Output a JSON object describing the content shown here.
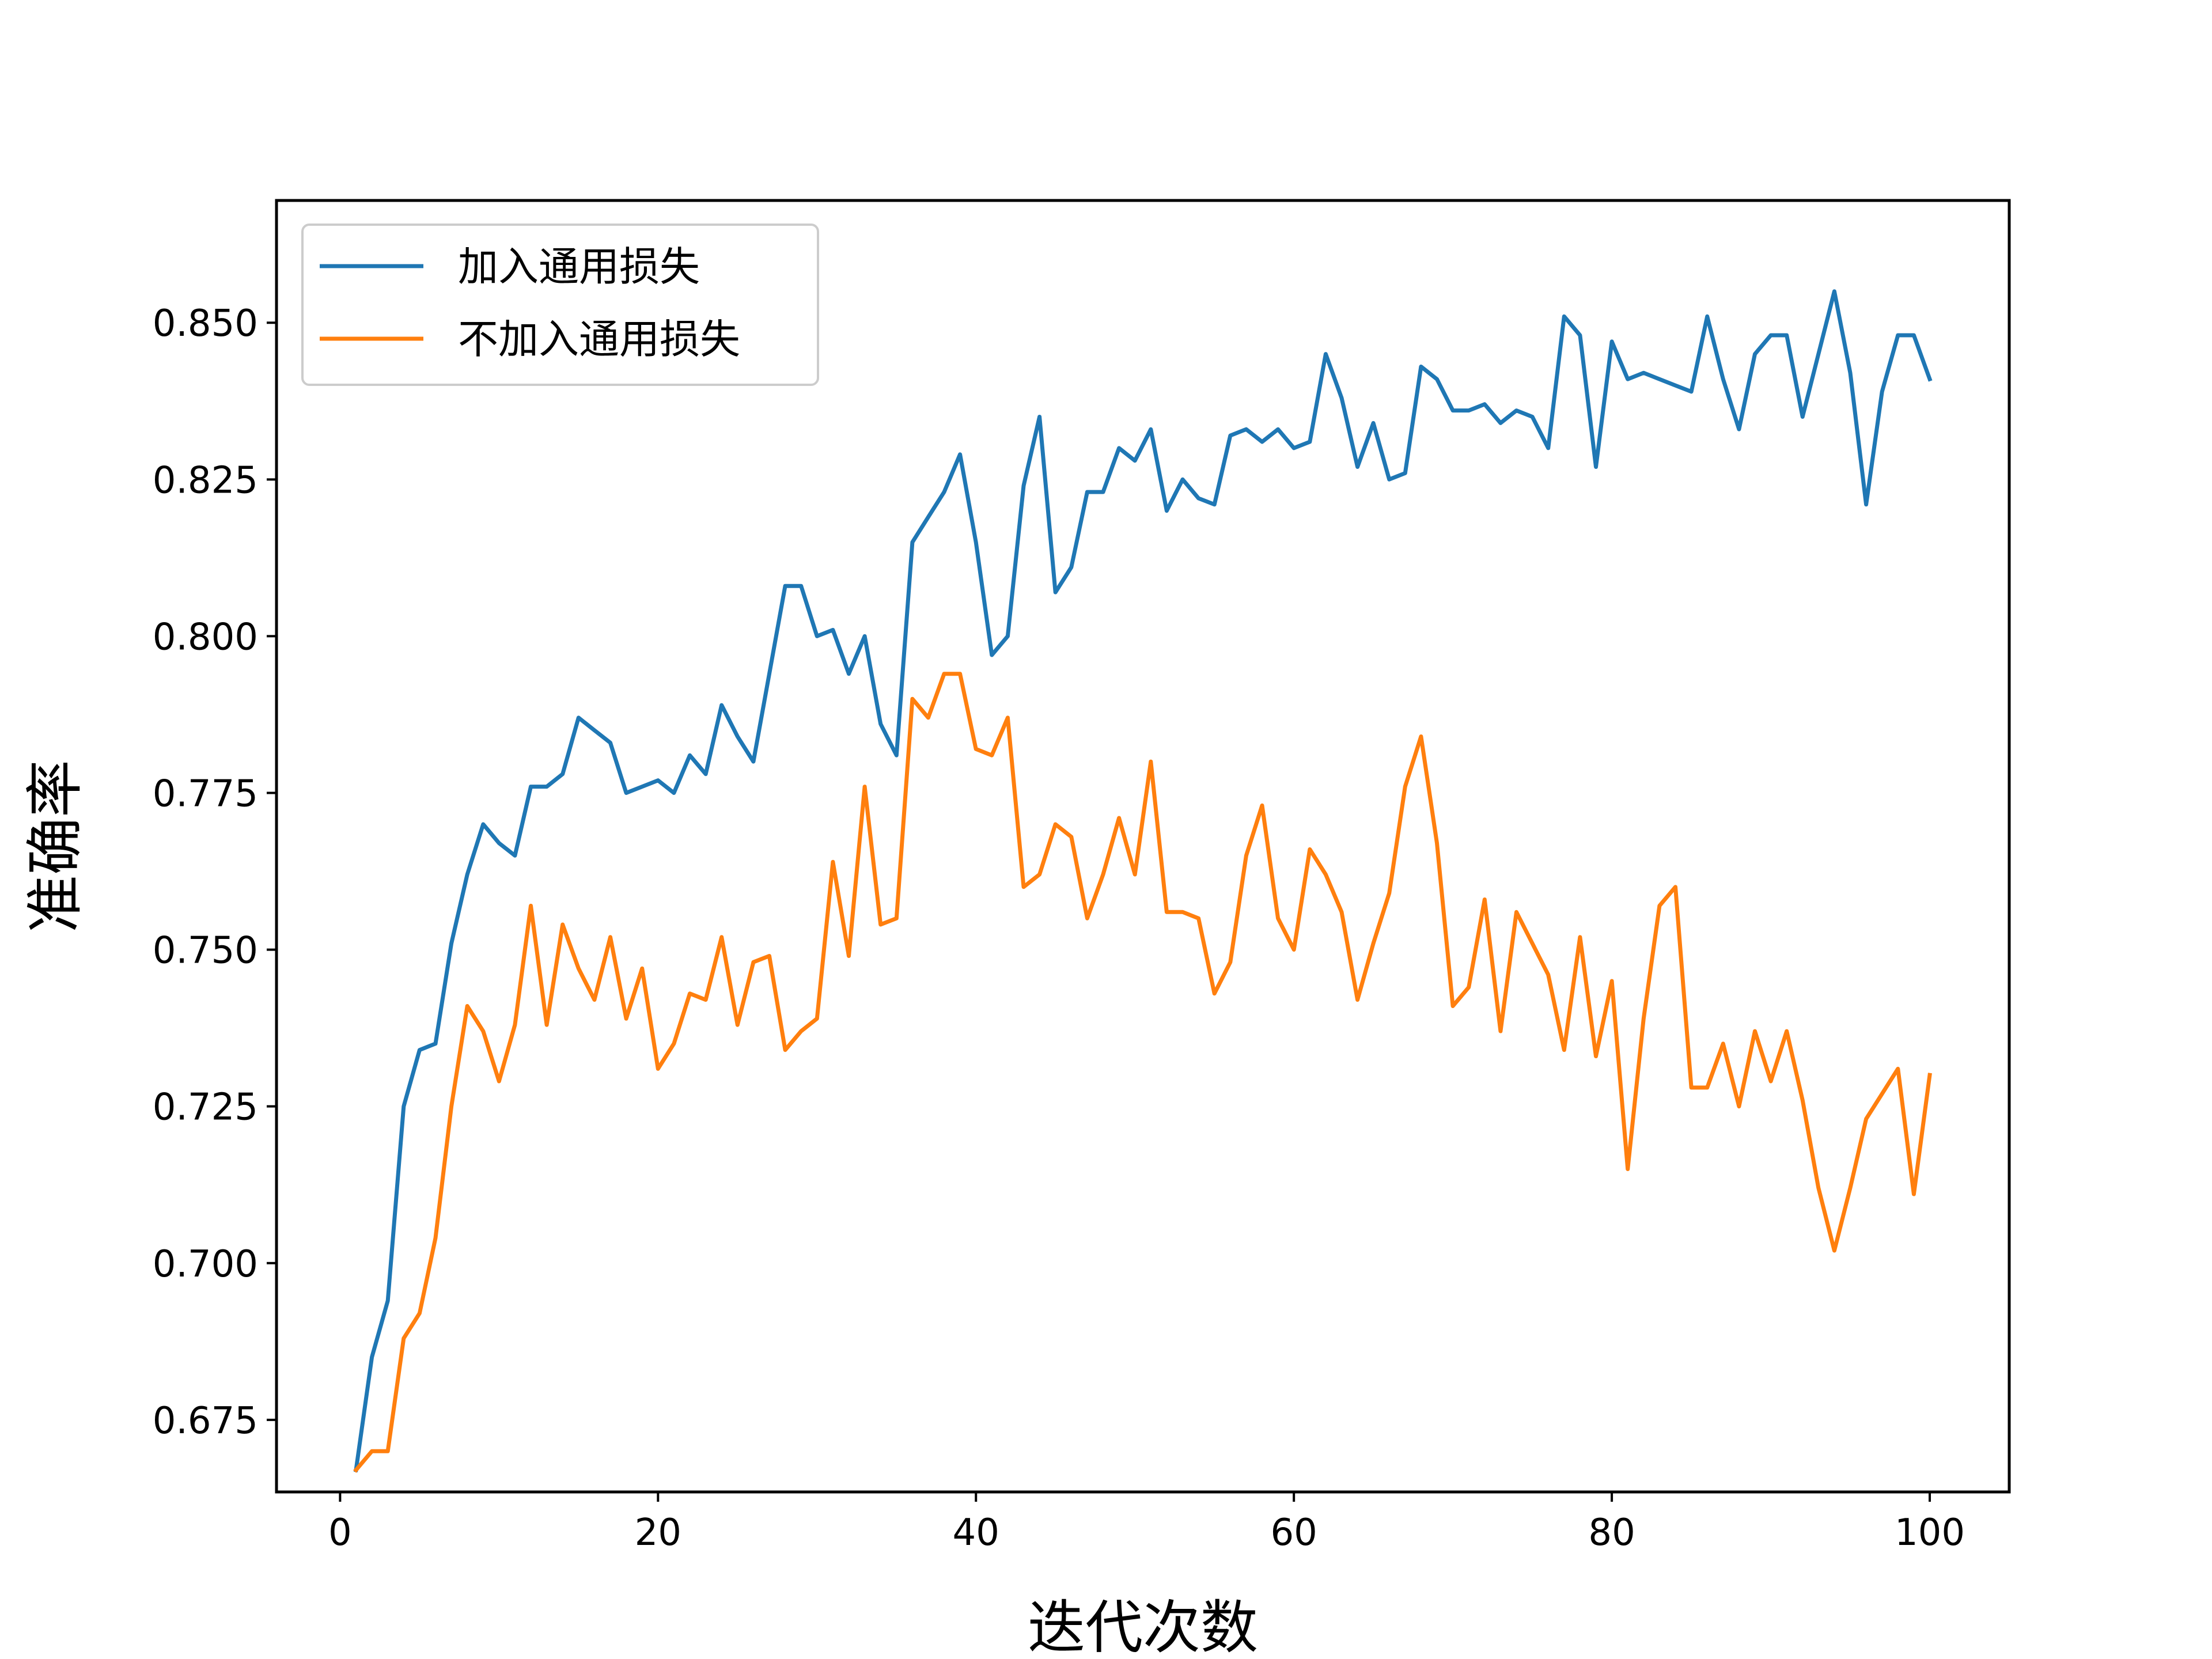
{
  "chart_data": {
    "type": "line",
    "title": "",
    "xlabel": "迭代次数",
    "ylabel": "准确率",
    "xlim": [
      -4,
      105
    ],
    "ylim": [
      0.6635,
      0.8695
    ],
    "xticks": [
      0,
      20,
      40,
      60,
      80,
      100
    ],
    "xtick_labels": [
      "0",
      "20",
      "40",
      "60",
      "80",
      "100"
    ],
    "yticks": [
      0.675,
      0.7,
      0.725,
      0.75,
      0.775,
      0.8,
      0.825,
      0.85
    ],
    "ytick_labels": [
      "0.675",
      "0.700",
      "0.725",
      "0.750",
      "0.775",
      "0.800",
      "0.825",
      "0.850"
    ],
    "grid": false,
    "legend_position": "upper-left",
    "x": [
      1,
      2,
      3,
      4,
      5,
      6,
      7,
      8,
      9,
      10,
      11,
      12,
      13,
      14,
      15,
      16,
      17,
      18,
      19,
      20,
      21,
      22,
      23,
      24,
      25,
      26,
      27,
      28,
      29,
      30,
      31,
      32,
      33,
      34,
      35,
      36,
      37,
      38,
      39,
      40,
      41,
      42,
      43,
      44,
      45,
      46,
      47,
      48,
      49,
      50,
      51,
      52,
      53,
      54,
      55,
      56,
      57,
      58,
      59,
      60,
      61,
      62,
      63,
      64,
      65,
      66,
      67,
      68,
      69,
      70,
      71,
      72,
      73,
      74,
      75,
      76,
      77,
      78,
      79,
      80,
      81,
      82,
      83,
      84,
      85,
      86,
      87,
      88,
      89,
      90,
      91,
      92,
      93,
      94,
      95,
      96,
      97,
      98,
      99,
      100
    ],
    "series": [
      {
        "name": "加入通用损失",
        "color": "#1f77b4",
        "values": [
          0.667,
          0.685,
          0.694,
          0.725,
          0.734,
          0.735,
          0.751,
          0.762,
          0.77,
          0.767,
          0.765,
          0.776,
          0.776,
          0.778,
          0.787,
          0.785,
          0.783,
          0.775,
          0.776,
          0.777,
          0.775,
          0.781,
          0.778,
          0.789,
          0.784,
          0.78,
          0.794,
          0.808,
          0.808,
          0.8,
          0.801,
          0.794,
          0.8,
          0.786,
          0.781,
          0.815,
          0.819,
          0.823,
          0.829,
          0.815,
          0.797,
          0.8,
          0.824,
          0.835,
          0.807,
          0.811,
          0.823,
          0.823,
          0.83,
          0.828,
          0.833,
          0.82,
          0.825,
          0.822,
          0.821,
          0.832,
          0.833,
          0.831,
          0.833,
          0.83,
          0.831,
          0.845,
          0.838,
          0.827,
          0.834,
          0.825,
          0.826,
          0.843,
          0.841,
          0.836,
          0.836,
          0.837,
          0.834,
          0.836,
          0.835,
          0.83,
          0.851,
          0.848,
          0.827,
          0.847,
          0.841,
          0.842,
          0.841,
          0.84,
          0.839,
          0.851,
          0.841,
          0.833,
          0.845,
          0.848,
          0.848,
          0.835,
          0.845,
          0.855,
          0.842,
          0.821,
          0.839,
          0.848,
          0.848,
          0.841
        ]
      },
      {
        "name": "不加入通用损失",
        "color": "#ff7f0e",
        "values": [
          0.667,
          0.67,
          0.67,
          0.688,
          0.692,
          0.704,
          0.725,
          0.741,
          0.737,
          0.729,
          0.738,
          0.757,
          0.738,
          0.754,
          0.747,
          0.742,
          0.752,
          0.739,
          0.747,
          0.731,
          0.735,
          0.743,
          0.742,
          0.752,
          0.738,
          0.748,
          0.749,
          0.734,
          0.737,
          0.739,
          0.764,
          0.749,
          0.776,
          0.754,
          0.755,
          0.79,
          0.787,
          0.794,
          0.794,
          0.782,
          0.781,
          0.787,
          0.76,
          0.762,
          0.77,
          0.768,
          0.755,
          0.762,
          0.771,
          0.762,
          0.78,
          0.756,
          0.756,
          0.755,
          0.743,
          0.748,
          0.765,
          0.773,
          0.755,
          0.75,
          0.766,
          0.762,
          0.756,
          0.742,
          0.751,
          0.759,
          0.776,
          0.784,
          0.767,
          0.741,
          0.744,
          0.758,
          0.737,
          0.756,
          0.751,
          0.746,
          0.734,
          0.752,
          0.733,
          0.745,
          0.715,
          0.739,
          0.757,
          0.76,
          0.728,
          0.728,
          0.735,
          0.725,
          0.737,
          0.729,
          0.737,
          0.726,
          0.712,
          0.702,
          0.712,
          0.723,
          0.727,
          0.731,
          0.711,
          0.73
        ]
      }
    ]
  }
}
